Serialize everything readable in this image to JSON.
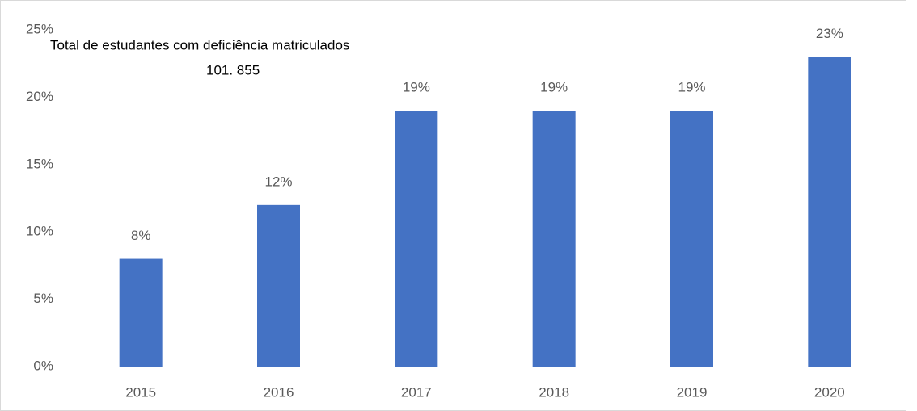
{
  "chart_data": {
    "type": "bar",
    "annotations": [
      "Total de estudantes  com deficiência matriculados",
      "101. 855"
    ],
    "categories": [
      "2015",
      "2016",
      "2017",
      "2018",
      "2019",
      "2020"
    ],
    "values": [
      8,
      12,
      19,
      19,
      19,
      23
    ],
    "value_labels": [
      "8%",
      "12%",
      "19%",
      "19%",
      "19%",
      "23%"
    ],
    "color": "#4472c4",
    "ylim": [
      0,
      25
    ],
    "yticks": [
      {
        "value": 0,
        "label": "0%"
      },
      {
        "value": 5,
        "label": "5%"
      },
      {
        "value": 10,
        "label": "10%"
      },
      {
        "value": 15,
        "label": "15%"
      },
      {
        "value": 20,
        "label": "20%"
      },
      {
        "value": 25,
        "label": "25%"
      }
    ],
    "grid": false
  }
}
